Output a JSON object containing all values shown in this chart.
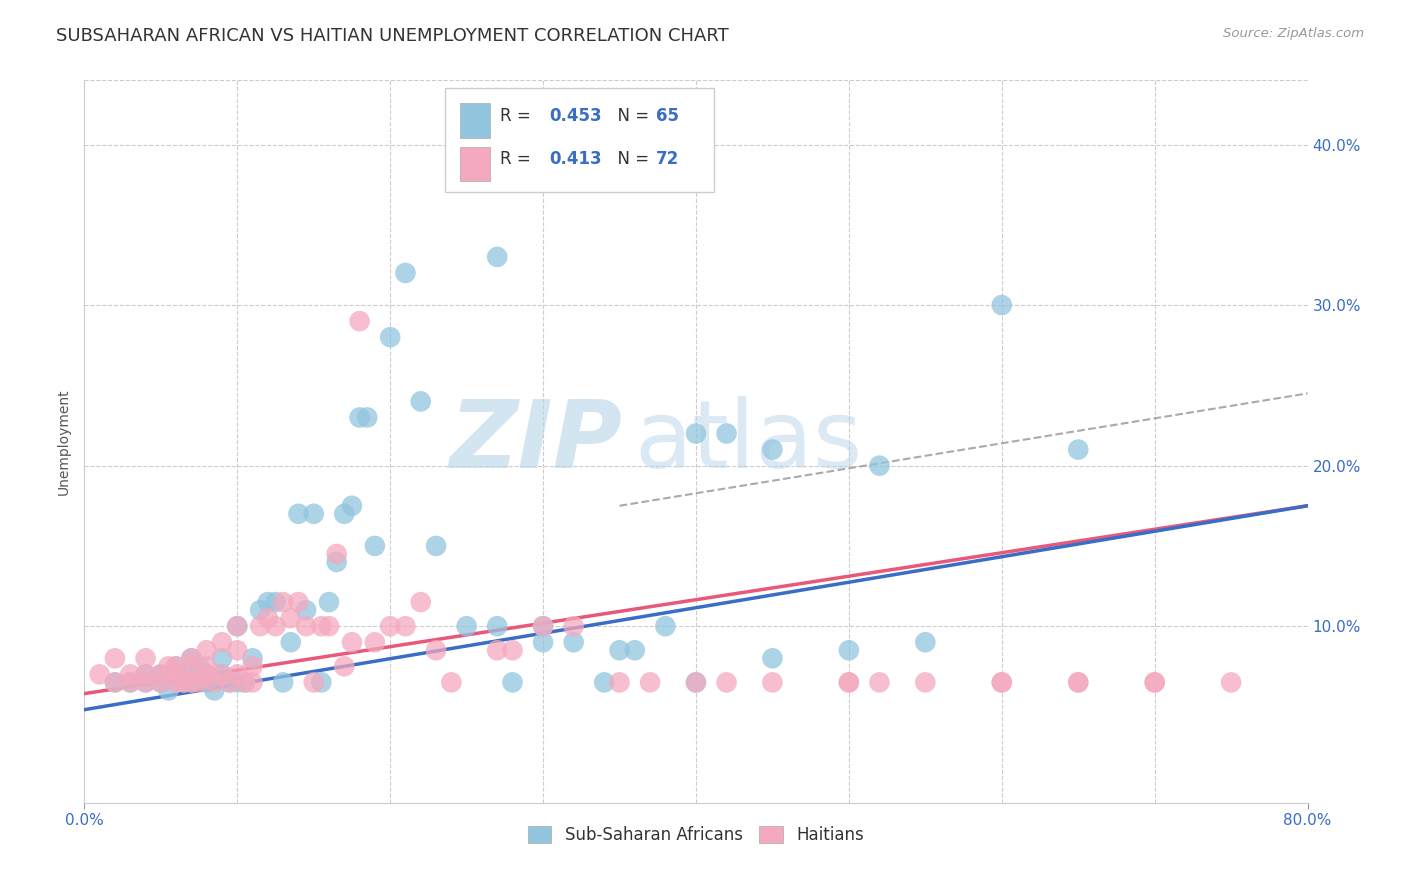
{
  "title": "SUBSAHARAN AFRICAN VS HAITIAN UNEMPLOYMENT CORRELATION CHART",
  "source": "Source: ZipAtlas.com",
  "xlabel_ticks": [
    "0.0%",
    "80.0%"
  ],
  "xlabel_vals": [
    0.0,
    0.8
  ],
  "xlabel_minor_vals": [
    0.1,
    0.2,
    0.3,
    0.4,
    0.5,
    0.6,
    0.7
  ],
  "ylabel": "Unemployment",
  "ylabel_ticks": [
    "10.0%",
    "20.0%",
    "30.0%",
    "40.0%"
  ],
  "ylabel_vals": [
    0.1,
    0.2,
    0.3,
    0.4
  ],
  "xlim": [
    0.0,
    0.8
  ],
  "ylim": [
    -0.01,
    0.44
  ],
  "blue_color": "#92c5de",
  "pink_color": "#f4a9be",
  "blue_line_color": "#3a6dc5",
  "pink_line_color": "#e8587a",
  "dashed_line_color": "#aaaaaa",
  "legend_R1": "R = 0.453",
  "legend_N1": "N = 65",
  "legend_R2": "R = 0.413",
  "legend_N2": "N = 72",
  "legend_label1": "Sub-Saharan Africans",
  "legend_label2": "Haitians",
  "blue_scatter_x": [
    0.02,
    0.03,
    0.04,
    0.04,
    0.05,
    0.05,
    0.055,
    0.06,
    0.06,
    0.065,
    0.07,
    0.07,
    0.07,
    0.075,
    0.08,
    0.08,
    0.085,
    0.09,
    0.09,
    0.095,
    0.1,
    0.1,
    0.105,
    0.11,
    0.115,
    0.12,
    0.125,
    0.13,
    0.135,
    0.14,
    0.145,
    0.15,
    0.155,
    0.16,
    0.165,
    0.17,
    0.175,
    0.18,
    0.185,
    0.19,
    0.2,
    0.21,
    0.22,
    0.23,
    0.25,
    0.27,
    0.28,
    0.3,
    0.32,
    0.34,
    0.36,
    0.38,
    0.4,
    0.42,
    0.45,
    0.5,
    0.52,
    0.55,
    0.6,
    0.65,
    0.27,
    0.3,
    0.35,
    0.4,
    0.45
  ],
  "blue_scatter_y": [
    0.065,
    0.065,
    0.07,
    0.065,
    0.07,
    0.065,
    0.06,
    0.07,
    0.075,
    0.065,
    0.07,
    0.065,
    0.08,
    0.075,
    0.065,
    0.07,
    0.06,
    0.08,
    0.07,
    0.065,
    0.1,
    0.065,
    0.065,
    0.08,
    0.11,
    0.115,
    0.115,
    0.065,
    0.09,
    0.17,
    0.11,
    0.17,
    0.065,
    0.115,
    0.14,
    0.17,
    0.175,
    0.23,
    0.23,
    0.15,
    0.28,
    0.32,
    0.24,
    0.15,
    0.1,
    0.1,
    0.065,
    0.1,
    0.09,
    0.065,
    0.085,
    0.1,
    0.22,
    0.22,
    0.21,
    0.085,
    0.2,
    0.09,
    0.3,
    0.21,
    0.33,
    0.09,
    0.085,
    0.065,
    0.08
  ],
  "pink_scatter_x": [
    0.01,
    0.02,
    0.02,
    0.03,
    0.03,
    0.04,
    0.04,
    0.04,
    0.05,
    0.05,
    0.055,
    0.06,
    0.06,
    0.06,
    0.065,
    0.07,
    0.07,
    0.07,
    0.075,
    0.08,
    0.08,
    0.08,
    0.085,
    0.09,
    0.09,
    0.095,
    0.1,
    0.1,
    0.1,
    0.105,
    0.11,
    0.11,
    0.115,
    0.12,
    0.125,
    0.13,
    0.135,
    0.14,
    0.145,
    0.15,
    0.155,
    0.16,
    0.165,
    0.17,
    0.175,
    0.18,
    0.19,
    0.2,
    0.21,
    0.22,
    0.23,
    0.24,
    0.27,
    0.28,
    0.3,
    0.32,
    0.35,
    0.37,
    0.4,
    0.42,
    0.45,
    0.5,
    0.52,
    0.55,
    0.6,
    0.65,
    0.7,
    0.5,
    0.6,
    0.65,
    0.7,
    0.75
  ],
  "pink_scatter_y": [
    0.07,
    0.065,
    0.08,
    0.065,
    0.07,
    0.07,
    0.065,
    0.08,
    0.065,
    0.07,
    0.075,
    0.065,
    0.075,
    0.07,
    0.065,
    0.065,
    0.075,
    0.08,
    0.065,
    0.07,
    0.075,
    0.085,
    0.065,
    0.07,
    0.09,
    0.065,
    0.07,
    0.085,
    0.1,
    0.065,
    0.065,
    0.075,
    0.1,
    0.105,
    0.1,
    0.115,
    0.105,
    0.115,
    0.1,
    0.065,
    0.1,
    0.1,
    0.145,
    0.075,
    0.09,
    0.29,
    0.09,
    0.1,
    0.1,
    0.115,
    0.085,
    0.065,
    0.085,
    0.085,
    0.1,
    0.1,
    0.065,
    0.065,
    0.065,
    0.065,
    0.065,
    0.065,
    0.065,
    0.065,
    0.065,
    0.065,
    0.065,
    0.065,
    0.065,
    0.065,
    0.065,
    0.065
  ],
  "blue_trend_x": [
    0.0,
    0.8
  ],
  "blue_trend_y_start": 0.048,
  "blue_trend_y_end": 0.175,
  "pink_trend_x": [
    0.0,
    0.8
  ],
  "pink_trend_y_start": 0.058,
  "pink_trend_y_end": 0.175,
  "dashed_trend_x": [
    0.35,
    0.8
  ],
  "dashed_trend_y_start": 0.175,
  "dashed_trend_y_end": 0.245,
  "grid_color": "#cccccc",
  "bg_color": "#ffffff",
  "title_fontsize": 13,
  "axis_tick_color": "#3a6dc5",
  "axis_tick_fontsize": 11
}
